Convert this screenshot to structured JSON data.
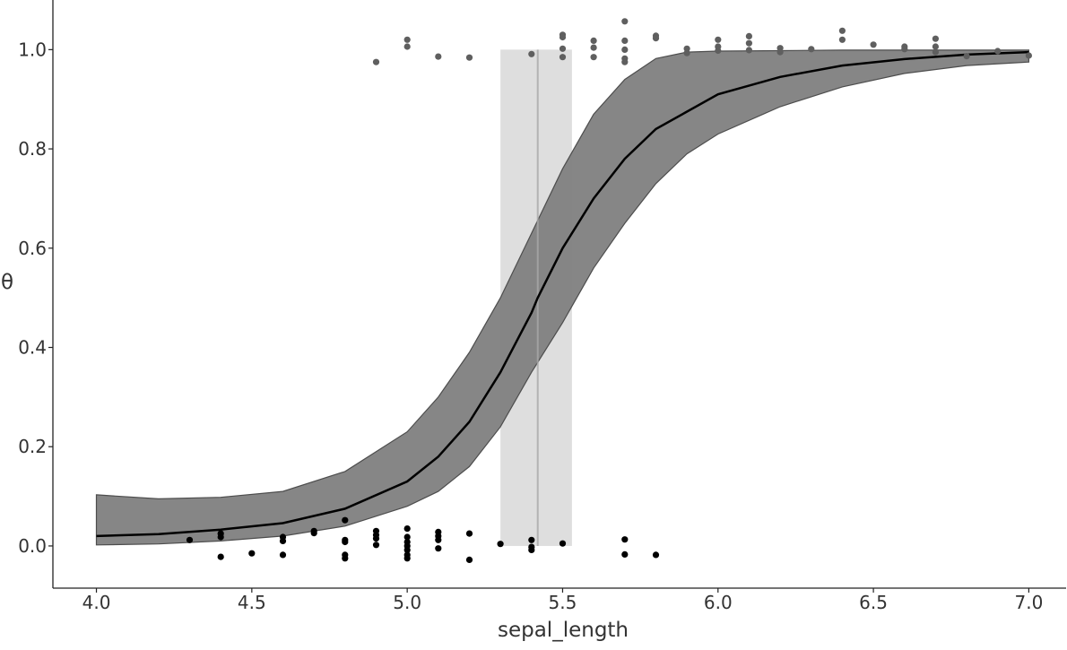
{
  "chart_data": {
    "type": "scatter",
    "title": "",
    "xlabel": "sepal_length",
    "ylabel": "θ",
    "xlim": [
      3.86,
      7.12
    ],
    "ylim": [
      -0.085,
      1.1
    ],
    "xticks": [
      4.0,
      4.5,
      5.0,
      5.5,
      6.0,
      6.5,
      7.0
    ],
    "xtick_labels": [
      "4.0",
      "4.5",
      "5.0",
      "5.5",
      "6.0",
      "6.5",
      "7.0"
    ],
    "yticks": [
      0.0,
      0.2,
      0.4,
      0.6,
      0.8,
      1.0
    ],
    "ytick_labels": [
      "0.0",
      "0.2",
      "0.4",
      "0.6",
      "0.8",
      "1.0"
    ],
    "grid": false,
    "legend": "none",
    "colors": {
      "band": "#7f7f7f",
      "band_edge": "#4d4d4d",
      "mean_line": "#000000",
      "boundary_band": "#d0d0d0",
      "boundary_line": "#a8a8a8",
      "points_class0": "#000000",
      "points_class1": "#5f5f5f"
    },
    "mean_curve": {
      "x": [
        4.0,
        4.2,
        4.4,
        4.6,
        4.8,
        5.0,
        5.1,
        5.2,
        5.3,
        5.4,
        5.42,
        5.5,
        5.6,
        5.7,
        5.8,
        6.0,
        6.2,
        6.4,
        6.6,
        6.8,
        7.0
      ],
      "y": [
        0.02,
        0.024,
        0.033,
        0.046,
        0.075,
        0.13,
        0.18,
        0.25,
        0.35,
        0.47,
        0.5,
        0.6,
        0.7,
        0.78,
        0.84,
        0.91,
        0.945,
        0.968,
        0.981,
        0.99,
        0.995
      ]
    },
    "hdi_band": {
      "x": [
        4.0,
        4.2,
        4.4,
        4.6,
        4.8,
        5.0,
        5.1,
        5.2,
        5.3,
        5.4,
        5.5,
        5.6,
        5.7,
        5.8,
        5.9,
        6.0,
        6.2,
        6.4,
        6.6,
        6.8,
        7.0
      ],
      "lower": [
        0.002,
        0.004,
        0.01,
        0.02,
        0.04,
        0.08,
        0.11,
        0.16,
        0.24,
        0.35,
        0.45,
        0.56,
        0.65,
        0.73,
        0.79,
        0.83,
        0.885,
        0.925,
        0.952,
        0.968,
        0.975
      ],
      "upper": [
        0.103,
        0.095,
        0.098,
        0.11,
        0.15,
        0.23,
        0.3,
        0.39,
        0.5,
        0.63,
        0.76,
        0.87,
        0.94,
        0.982,
        0.995,
        0.997,
        0.998,
        0.999,
        0.999,
        0.999,
        0.999
      ]
    },
    "decision_boundary": {
      "mean": 5.42,
      "hdi": [
        5.3,
        5.53
      ]
    },
    "series": [
      {
        "class": 0,
        "x": [
          4.3,
          4.4,
          4.4,
          4.4,
          4.5,
          4.6,
          4.6,
          4.6,
          4.7,
          4.7,
          4.8,
          4.8,
          4.8,
          4.8,
          4.8,
          4.9,
          4.9,
          4.9,
          4.9,
          5.0,
          5.0,
          5.0,
          5.0,
          5.0,
          5.0,
          5.0,
          5.1,
          5.1,
          5.1,
          5.1,
          5.2,
          5.2,
          5.3,
          5.4,
          5.4,
          5.4,
          5.5,
          5.7,
          5.7,
          5.8
        ],
        "y": [
          0.012,
          0.025,
          0.018,
          -0.022,
          -0.015,
          0.018,
          0.01,
          -0.018,
          0.03,
          0.026,
          0.052,
          0.012,
          0.008,
          -0.018,
          -0.025,
          0.03,
          0.022,
          0.015,
          0.002,
          0.035,
          0.018,
          0.008,
          0.0,
          -0.008,
          -0.018,
          -0.025,
          0.028,
          0.02,
          0.012,
          -0.005,
          0.025,
          -0.028,
          0.004,
          0.012,
          -0.002,
          -0.008,
          0.005,
          0.013,
          -0.017,
          -0.018
        ]
      },
      {
        "class": 1,
        "x": [
          4.9,
          5.0,
          5.0,
          5.1,
          5.2,
          5.4,
          5.5,
          5.5,
          5.5,
          5.5,
          5.6,
          5.6,
          5.6,
          5.7,
          5.7,
          5.7,
          5.7,
          5.7,
          5.8,
          5.8,
          5.9,
          5.9,
          6.0,
          6.0,
          6.0,
          6.1,
          6.1,
          6.1,
          6.2,
          6.2,
          6.3,
          6.4,
          6.4,
          6.5,
          6.6,
          6.6,
          6.7,
          6.7,
          6.7,
          6.8,
          6.9,
          7.0
        ],
        "y": [
          0.975,
          1.02,
          1.006,
          0.986,
          0.984,
          0.991,
          1.03,
          1.025,
          1.002,
          0.985,
          1.018,
          1.004,
          0.985,
          1.057,
          1.018,
          1.0,
          0.982,
          0.975,
          1.028,
          1.023,
          1.002,
          0.993,
          1.02,
          1.006,
          0.998,
          1.027,
          1.013,
          0.999,
          1.003,
          0.995,
          1.001,
          1.038,
          1.02,
          1.01,
          1.006,
          1.001,
          1.022,
          1.006,
          0.995,
          0.987,
          0.997,
          0.988
        ]
      }
    ]
  }
}
